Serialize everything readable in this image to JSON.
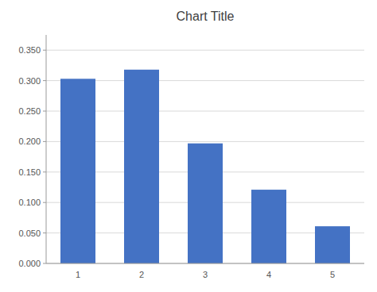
{
  "chart_data": {
    "type": "bar",
    "title": "Chart Title",
    "categories": [
      1,
      2,
      3,
      4,
      5
    ],
    "values": [
      0.303,
      0.318,
      0.197,
      0.121,
      0.061
    ],
    "color": "#4472C4",
    "ylim": [
      0.0,
      0.375
    ],
    "yticks": [
      {
        "value": 0.0,
        "label": "0.000"
      },
      {
        "value": 0.05,
        "label": "0.050"
      },
      {
        "value": 0.1,
        "label": "0.100"
      },
      {
        "value": 0.15,
        "label": "0.150"
      },
      {
        "value": 0.2,
        "label": "0.200"
      },
      {
        "value": 0.25,
        "label": "0.250"
      },
      {
        "value": 0.3,
        "label": "0.300"
      },
      {
        "value": 0.35,
        "label": "0.350"
      }
    ],
    "grid": true
  }
}
